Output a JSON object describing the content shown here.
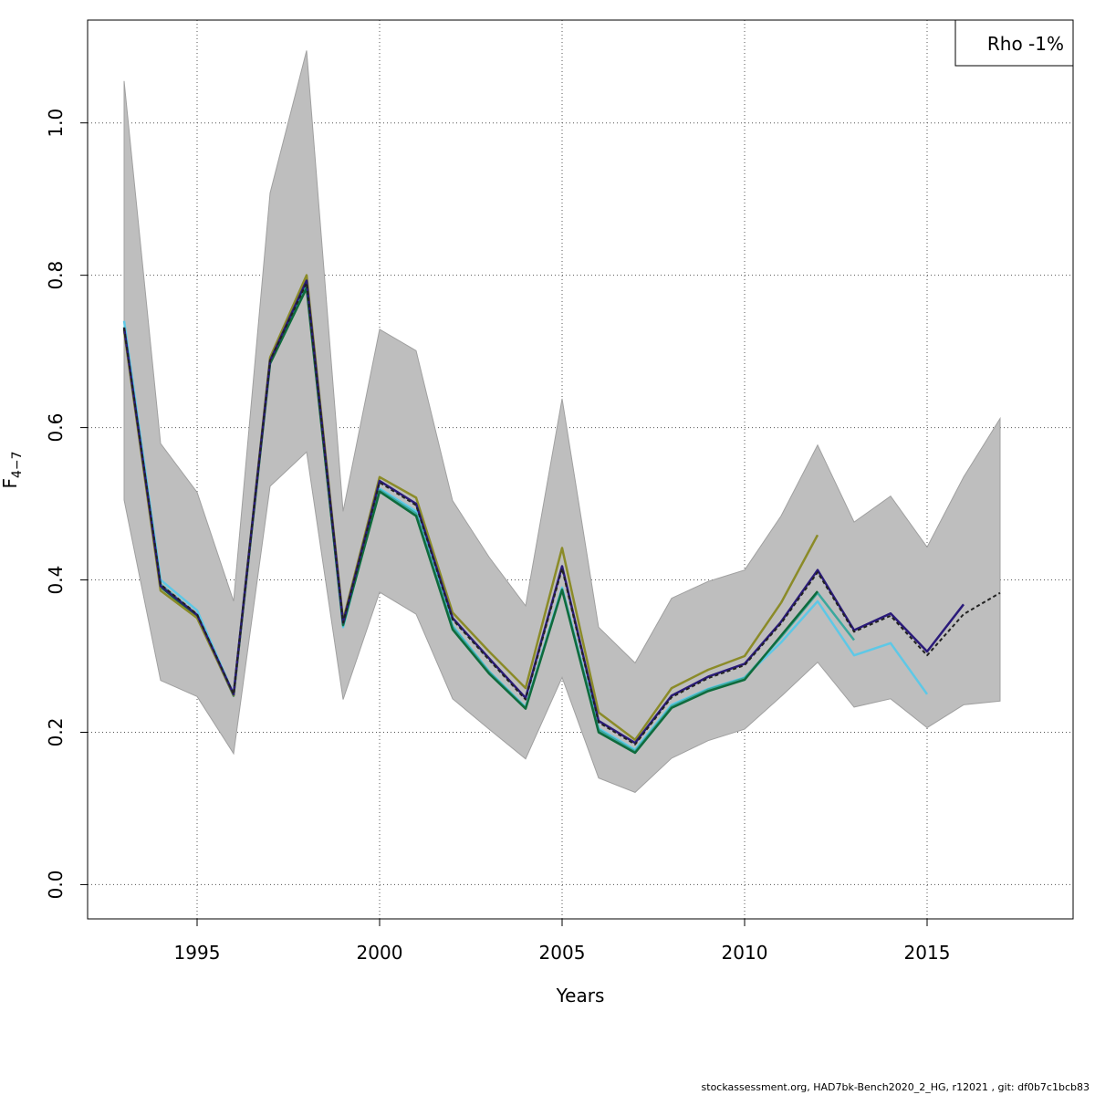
{
  "chart_data": {
    "type": "line",
    "title": "",
    "xlabel": "Years",
    "ylabel_main": "F",
    "ylabel_sub": "4−7",
    "xlim": [
      1992,
      2019
    ],
    "ylim": [
      -0.045,
      1.135
    ],
    "xticks": [
      1995,
      2000,
      2005,
      2010,
      2015
    ],
    "yticks": [
      0.0,
      0.2,
      0.4,
      0.6,
      0.8,
      1.0
    ],
    "ytick_labels": [
      "0.0",
      "0.2",
      "0.4",
      "0.6",
      "0.8",
      "1.0"
    ],
    "grid": true,
    "legend_text": "Rho -1%",
    "legend_position": "top-right",
    "band": {
      "color": "#bebebe",
      "x": [
        1993,
        1994,
        1995,
        1996,
        1997,
        1998,
        1999,
        2000,
        2001,
        2002,
        2003,
        2004,
        2005,
        2006,
        2007,
        2008,
        2009,
        2010,
        2011,
        2012,
        2013,
        2014,
        2015,
        2016,
        2017
      ],
      "upper": [
        1.055,
        0.579,
        0.515,
        0.372,
        0.908,
        1.095,
        0.49,
        0.729,
        0.701,
        0.504,
        0.43,
        0.366,
        0.638,
        0.338,
        0.291,
        0.376,
        0.398,
        0.413,
        0.484,
        0.577,
        0.476,
        0.51,
        0.443,
        0.535,
        0.612
      ],
      "lower": [
        0.505,
        0.268,
        0.247,
        0.172,
        0.523,
        0.568,
        0.243,
        0.384,
        0.355,
        0.244,
        0.204,
        0.165,
        0.272,
        0.14,
        0.121,
        0.166,
        0.189,
        0.204,
        0.247,
        0.292,
        0.233,
        0.244,
        0.206,
        0.236,
        0.241
      ]
    },
    "series": [
      {
        "color": "#5ec8e6",
        "dashed": false,
        "x": [
          1993,
          1994,
          1995,
          1996,
          1997,
          1998,
          1999,
          2000,
          2001,
          2002,
          2003,
          2004,
          2005,
          2006,
          2007,
          2008,
          2009,
          2010,
          2011,
          2012,
          2013,
          2014,
          2015
        ],
        "values": [
          0.74,
          0.4,
          0.36,
          0.25,
          0.69,
          0.79,
          0.338,
          0.52,
          0.49,
          0.34,
          0.28,
          0.233,
          0.39,
          0.205,
          0.177,
          0.236,
          0.257,
          0.272,
          0.318,
          0.372,
          0.301,
          0.317,
          0.25
        ]
      },
      {
        "color": "#3aa89e",
        "dashed": false,
        "x": [
          1993,
          1994,
          1995,
          1996,
          1997,
          1998,
          1999,
          2000,
          2001,
          2002,
          2003,
          2004,
          2005,
          2006,
          2007,
          2008,
          2009,
          2010,
          2011,
          2012,
          2013
        ],
        "values": [
          0.732,
          0.394,
          0.354,
          0.249,
          0.686,
          0.786,
          0.34,
          0.518,
          0.487,
          0.338,
          0.279,
          0.232,
          0.388,
          0.203,
          0.175,
          0.234,
          0.256,
          0.271,
          0.325,
          0.383,
          0.321
        ]
      },
      {
        "color": "#0f6b3c",
        "dashed": false,
        "x": [
          1993,
          1994,
          1995,
          1996,
          1997,
          1998,
          1999,
          2000,
          2001,
          2002,
          2003,
          2004,
          2005,
          2006,
          2007,
          2008,
          2009,
          2010,
          2011,
          2012
        ],
        "values": [
          0.729,
          0.391,
          0.352,
          0.248,
          0.684,
          0.783,
          0.341,
          0.516,
          0.484,
          0.335,
          0.277,
          0.231,
          0.387,
          0.2,
          0.173,
          0.232,
          0.254,
          0.269,
          0.327,
          0.385
        ]
      },
      {
        "color": "#8b8b28",
        "dashed": false,
        "x": [
          1993,
          1994,
          1995,
          1996,
          1997,
          1998,
          1999,
          2000,
          2001,
          2002,
          2003,
          2004,
          2005,
          2006,
          2007,
          2008,
          2009,
          2010,
          2011
        ],
        "values": [
          0.727,
          0.386,
          0.35,
          0.249,
          0.692,
          0.8,
          0.347,
          0.535,
          0.508,
          0.357,
          0.306,
          0.258,
          0.442,
          0.226,
          0.19,
          0.258,
          0.282,
          0.3,
          0.37
        ]
      },
      {
        "color": "#8b8b28",
        "dashed": false,
        "x": [
          2011,
          2012
        ],
        "values": [
          0.37,
          0.459
        ]
      },
      {
        "color": "#2a1a7a",
        "dashed": false,
        "x": [
          1993,
          1994,
          1995,
          1996,
          1997,
          1998,
          1999,
          2000,
          2001,
          2002,
          2003,
          2004,
          2005,
          2006,
          2007,
          2008,
          2009,
          2010,
          2011,
          2012,
          2013,
          2014,
          2015,
          2016
        ],
        "values": [
          0.731,
          0.392,
          0.354,
          0.25,
          0.688,
          0.793,
          0.344,
          0.53,
          0.5,
          0.35,
          0.297,
          0.245,
          0.418,
          0.215,
          0.186,
          0.248,
          0.273,
          0.29,
          0.345,
          0.413,
          0.334,
          0.356,
          0.306,
          0.368
        ]
      },
      {
        "color": "#222222",
        "dashed": true,
        "x": [
          1993,
          1994,
          1995,
          1996,
          1997,
          1998,
          1999,
          2000,
          2001,
          2002,
          2003,
          2004,
          2005,
          2006,
          2007,
          2008,
          2009,
          2010,
          2011,
          2012,
          2013,
          2014,
          2015,
          2016,
          2017
        ],
        "values": [
          0.731,
          0.394,
          0.355,
          0.25,
          0.688,
          0.79,
          0.344,
          0.528,
          0.498,
          0.348,
          0.295,
          0.243,
          0.415,
          0.213,
          0.184,
          0.246,
          0.271,
          0.288,
          0.343,
          0.41,
          0.332,
          0.353,
          0.301,
          0.355,
          0.383
        ]
      }
    ]
  },
  "footer_text": "stockassessment.org, HAD7bk-Bench2020_2_HG, r12021 , git: df0b7c1bcb83"
}
